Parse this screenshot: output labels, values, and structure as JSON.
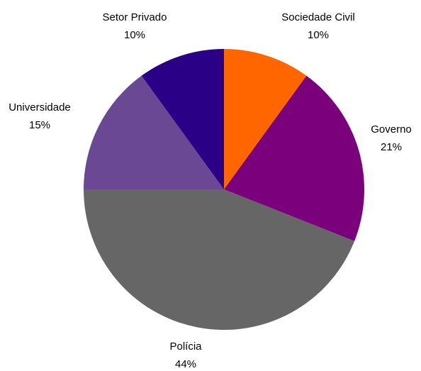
{
  "chart_data": {
    "type": "pie",
    "title": "",
    "start_angle_deg": 0,
    "direction": "clockwise",
    "legend": "none",
    "slices": [
      {
        "label": "Sociedade Civil",
        "value": 10,
        "display": "10%",
        "color": "#ff6600"
      },
      {
        "label": "Governo",
        "value": 21,
        "display": "21%",
        "color": "#7b007b"
      },
      {
        "label": "Polícia",
        "value": 44,
        "display": "44%",
        "color": "#666666"
      },
      {
        "label": "Universidade",
        "value": 15,
        "display": "15%",
        "color": "#6b4893"
      },
      {
        "label": "Setor Privado",
        "value": 10,
        "display": "10%",
        "color": "#2a0087"
      }
    ]
  }
}
